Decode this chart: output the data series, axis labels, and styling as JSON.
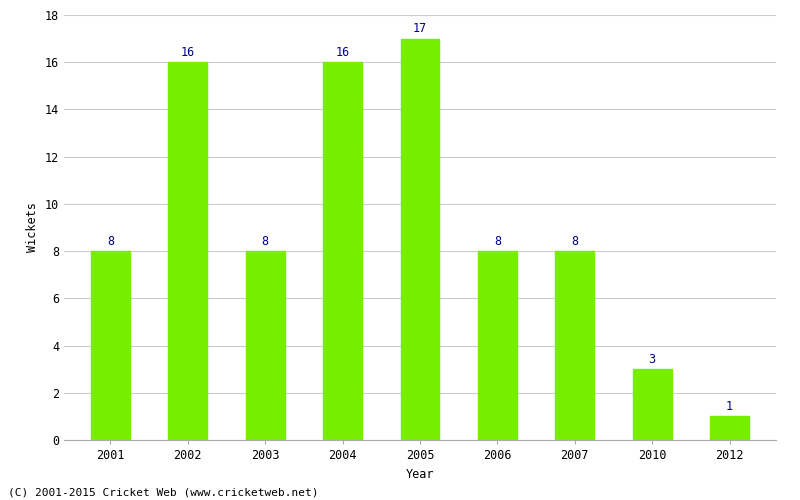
{
  "years": [
    "2001",
    "2002",
    "2003",
    "2004",
    "2005",
    "2006",
    "2007",
    "2010",
    "2012"
  ],
  "wickets": [
    8,
    16,
    8,
    16,
    17,
    8,
    8,
    3,
    1
  ],
  "bar_color": "#77ee00",
  "label_color": "#00008B",
  "xlabel": "Year",
  "ylabel": "Wickets",
  "ylim": [
    0,
    18
  ],
  "yticks": [
    0,
    2,
    4,
    6,
    8,
    10,
    12,
    14,
    16,
    18
  ],
  "footnote": "(C) 2001-2015 Cricket Web (www.cricketweb.net)",
  "background_color": "#ffffff",
  "grid_color": "#cccccc",
  "label_fontsize": 8.5,
  "axis_fontsize": 8.5,
  "footnote_fontsize": 8
}
